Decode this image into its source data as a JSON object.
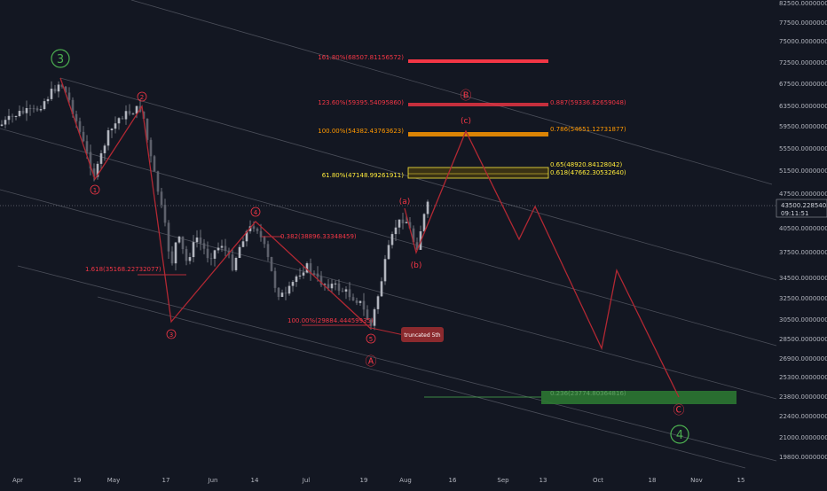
{
  "chart_data": {
    "type": "candlestick",
    "title": "",
    "ylim": [
      19800,
      82500
    ],
    "price_axis": {
      "ticks": [
        "82500.00000000",
        "77500.00000000",
        "75000.00000000",
        "72500.00000000",
        "67500.00000000",
        "63500.00000000",
        "59500.00000000",
        "55500.00000000",
        "51500.00000000",
        "47500.00000000",
        "40500.00000000",
        "37500.00000000",
        "34500.00000000",
        "32500.00000000",
        "30500.00000000",
        "28500.00000000",
        "26900.00000000",
        "25300.00000000",
        "23800.00000000",
        "22400.00000000",
        "21000.00000000",
        "19800.00000000"
      ],
      "current_price": "43500.22854081",
      "countdown": "09:11:51"
    },
    "time_axis": {
      "ticks": [
        "Apr",
        "19",
        "May",
        "17",
        "Jun",
        "14",
        "Jul",
        "19",
        "Aug",
        "16",
        "Sep",
        "13",
        "Oct",
        "18",
        "Nov",
        "15"
      ]
    },
    "wave_labels": [
      "3",
      "2",
      "1",
      "4",
      "3",
      "5",
      "Ⓐ",
      "(a)",
      "(b)",
      "(c)",
      "Ⓑ",
      "Ⓒ",
      "4"
    ],
    "fib_labels": {
      "f1618_top": "161.80%(68507.81156572)",
      "f1236": "123.60%(59395.54095860)",
      "f0887": "0.887(59336.82659048)",
      "f100_top": "100.00%(54382.43763623)",
      "f0786": "0.786(54651.12731877)",
      "f065": "0.65(48920.84128042)",
      "f0618": "0.618(47662.30532640)",
      "f618": "61.80%(47148.99261911)",
      "f0382": "0.382(38896.33348459)",
      "f1618_left": "1.618(35168.22732077)",
      "f100_bottom": "100.00%(29884.44459935)",
      "f0236": "0.236(23774.80364816)"
    },
    "callout": "truncated 5th",
    "colors": {
      "background": "#131722",
      "candle": "#9598a1",
      "wave_line": "#b22833",
      "fib_red": "#f23645",
      "fib_orange": "#ff9800",
      "fib_yellow": "#ffeb3b",
      "target_green": "#2e7d32",
      "label_green": "#4caf50"
    }
  }
}
